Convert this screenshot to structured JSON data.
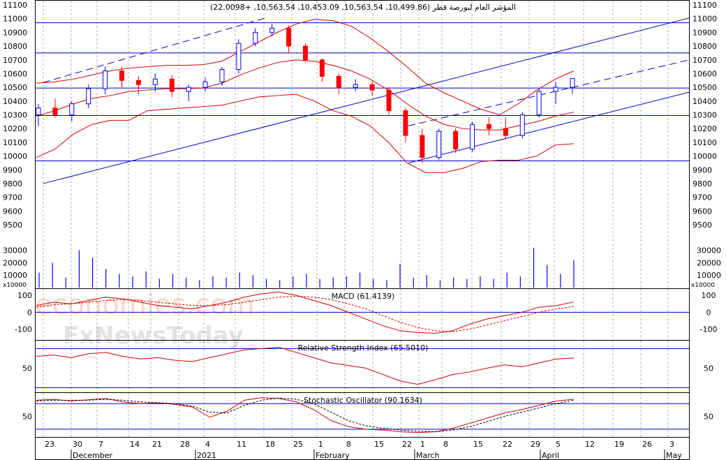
{
  "header": {
    "title": "المؤشر العام لبورصة قطر (10,499.86, 10,563.54, 10,453.09, 10,563.54, +22.0098)"
  },
  "watermark": {
    "line1": "economies.com",
    "line2": "FxNewsToday"
  },
  "colors": {
    "up": "#0000ff",
    "down": "#ff0000",
    "hline": "#0000c8",
    "band": "#d00000",
    "grid": "#808080"
  },
  "chart_data": [
    {
      "type": "candlestick",
      "title": "المؤشر العام لبورصة قطر",
      "ohlc_last": {
        "open": 10499.86,
        "high": 10563.54,
        "low": 10453.09,
        "close": 10563.54,
        "change": 22.0098
      },
      "ylim": [
        9400,
        11100
      ],
      "yticks": [
        9500,
        9600,
        9700,
        9800,
        9900,
        10000,
        10100,
        10200,
        10300,
        10400,
        10500,
        10600,
        10700,
        10800,
        10900,
        11000,
        11100
      ],
      "horizontal_lines": [
        10970,
        10750,
        10495,
        10295,
        9965
      ],
      "channel_lines": [
        {
          "style": "solid",
          "from": [
            "2020-11-23",
            9800
          ],
          "to": [
            "2021-05-05",
            11020
          ]
        },
        {
          "style": "solid",
          "from": [
            "2021-02-22",
            9950
          ],
          "to": [
            "2021-05-05",
            10480
          ]
        },
        {
          "style": "dashed",
          "from": [
            "2020-11-23",
            10535
          ],
          "to": [
            "2021-01-18",
            11010
          ]
        },
        {
          "style": "dashed",
          "from": [
            "2021-02-22",
            10220
          ],
          "to": [
            "2021-05-03",
            10700
          ]
        }
      ],
      "bollinger": {
        "upper": [
          10530,
          10540,
          10560,
          10590,
          10620,
          10640,
          10650,
          10660,
          10660,
          10665,
          10690,
          10760,
          10830,
          10900,
          10960,
          10995,
          10985,
          10945,
          10860,
          10760,
          10650,
          10530,
          10460,
          10400,
          10340,
          10300,
          10380,
          10480,
          10560,
          10620
        ],
        "middle": [
          10290,
          10330,
          10380,
          10420,
          10440,
          10470,
          10480,
          10490,
          10490,
          10495,
          10530,
          10590,
          10640,
          10680,
          10700,
          10690,
          10660,
          10620,
          10560,
          10480,
          10380,
          10290,
          10230,
          10200,
          10190,
          10190,
          10220,
          10250,
          10290,
          10320
        ],
        "lower": [
          9990,
          10050,
          10160,
          10230,
          10260,
          10260,
          10330,
          10340,
          10350,
          10360,
          10370,
          10400,
          10430,
          10440,
          10450,
          10400,
          10330,
          10290,
          10220,
          10100,
          9950,
          9880,
          9880,
          9910,
          9960,
          9970,
          9970,
          10000,
          10080,
          10090
        ]
      },
      "series": [
        {
          "name": "candles",
          "values": [
            [
              10300,
              10380,
              10220,
              10350
            ],
            [
              10350,
              10420,
              10280,
              10300
            ],
            [
              10300,
              10400,
              10250,
              10380
            ],
            [
              10380,
              10520,
              10350,
              10490
            ],
            [
              10490,
              10650,
              10450,
              10620
            ],
            [
              10620,
              10650,
              10500,
              10550
            ],
            [
              10550,
              10580,
              10450,
              10520
            ],
            [
              10520,
              10600,
              10470,
              10560
            ],
            [
              10560,
              10590,
              10430,
              10470
            ],
            [
              10470,
              10520,
              10400,
              10500
            ],
            [
              10500,
              10570,
              10470,
              10540
            ],
            [
              10540,
              10650,
              10510,
              10630
            ],
            [
              10630,
              10850,
              10600,
              10820
            ],
            [
              10820,
              10930,
              10800,
              10900
            ],
            [
              10900,
              10960,
              10870,
              10930
            ],
            [
              10930,
              10950,
              10750,
              10800
            ],
            [
              10800,
              10820,
              10680,
              10700
            ],
            [
              10700,
              10710,
              10540,
              10580
            ],
            [
              10580,
              10600,
              10450,
              10500
            ],
            [
              10500,
              10560,
              10470,
              10520
            ],
            [
              10520,
              10540,
              10440,
              10480
            ],
            [
              10480,
              10500,
              10300,
              10330
            ],
            [
              10330,
              10350,
              10100,
              10150
            ],
            [
              10150,
              10200,
              9950,
              9990
            ],
            [
              9990,
              10200,
              9970,
              10180
            ],
            [
              10180,
              10200,
              10020,
              10050
            ],
            [
              10050,
              10250,
              10030,
              10230
            ],
            [
              10230,
              10280,
              10150,
              10200
            ],
            [
              10200,
              10280,
              10120,
              10150
            ],
            [
              10150,
              10320,
              10130,
              10300
            ],
            [
              10300,
              10490,
              10280,
              10470
            ],
            [
              10470,
              10540,
              10380,
              10500
            ],
            [
              10500,
              10563.54,
              10453.09,
              10563.54
            ]
          ]
        }
      ]
    },
    {
      "type": "bar",
      "title": "Volume",
      "unit_label": "x10000",
      "yticks": [
        10000,
        20000,
        30000
      ],
      "ylim": [
        0,
        37000
      ],
      "values": [
        12000,
        20000,
        8000,
        30000,
        24000,
        15000,
        11000,
        9000,
        13000,
        7000,
        11000,
        8000,
        6000,
        9000,
        8000,
        12000,
        10000,
        7000,
        6000,
        9000,
        11000,
        7000,
        8000,
        9000,
        12000,
        7000,
        6000,
        19000,
        8000,
        10000,
        6000,
        8000,
        7000,
        9000,
        7000,
        12000,
        9000,
        32000,
        18000,
        11000,
        22000
      ]
    },
    {
      "type": "line",
      "title": "MACD (61.4139)",
      "yticks": [
        -100,
        0,
        100
      ],
      "ylim": [
        -160,
        130
      ],
      "series": [
        {
          "name": "MACD",
          "values": [
            40,
            60,
            50,
            70,
            90,
            80,
            60,
            40,
            30,
            20,
            40,
            60,
            90,
            110,
            120,
            100,
            70,
            40,
            0,
            -40,
            -80,
            -110,
            -120,
            -125,
            -110,
            -70,
            -40,
            -20,
            0,
            30,
            40,
            61.4139
          ]
        },
        {
          "name": "Signal",
          "values": [
            30,
            45,
            50,
            60,
            70,
            75,
            70,
            60,
            50,
            40,
            40,
            45,
            60,
            75,
            90,
            95,
            90,
            75,
            50,
            20,
            -20,
            -60,
            -90,
            -110,
            -115,
            -100,
            -75,
            -50,
            -25,
            0,
            20,
            35
          ]
        }
      ]
    },
    {
      "type": "line",
      "title": "Relative Strength Index (65.5010)",
      "yticks": [
        50
      ],
      "ylim": [
        15,
        90
      ],
      "series": [
        {
          "name": "RSI",
          "values": [
            68,
            70,
            66,
            72,
            74,
            68,
            64,
            66,
            62,
            60,
            66,
            72,
            78,
            80,
            82,
            74,
            66,
            58,
            54,
            50,
            40,
            30,
            25,
            32,
            40,
            44,
            50,
            55,
            52,
            58,
            64,
            65.501
          ]
        }
      ]
    },
    {
      "type": "line",
      "title": "Stochastic Oscillator (90.1634)",
      "yticks": [
        50
      ],
      "ylim": [
        5,
        100
      ],
      "series": [
        {
          "name": "%K",
          "values": [
            88,
            90,
            86,
            89,
            92,
            84,
            80,
            82,
            78,
            72,
            48,
            62,
            88,
            94,
            92,
            84,
            66,
            40,
            26,
            20,
            18,
            14,
            12,
            14,
            22,
            34,
            46,
            58,
            66,
            76,
            86,
            90.1634
          ]
        },
        {
          "name": "%D",
          "values": [
            86,
            88,
            88,
            88,
            90,
            88,
            84,
            82,
            80,
            74,
            60,
            58,
            76,
            88,
            93,
            90,
            80,
            60,
            40,
            28,
            22,
            18,
            15,
            14,
            18,
            26,
            38,
            50,
            60,
            70,
            80,
            88
          ]
        }
      ]
    }
  ],
  "xaxis": {
    "day_ticks": [
      "23",
      "30",
      "7",
      "14",
      "21",
      "28",
      "4",
      "11",
      "18",
      "25",
      "1",
      "8",
      "15",
      "22",
      "1",
      "8",
      "15",
      "22",
      "29",
      "5",
      "12",
      "19",
      "26",
      "3"
    ],
    "month_labels": [
      "December",
      "2021",
      "February",
      "March",
      "April",
      "May"
    ]
  }
}
